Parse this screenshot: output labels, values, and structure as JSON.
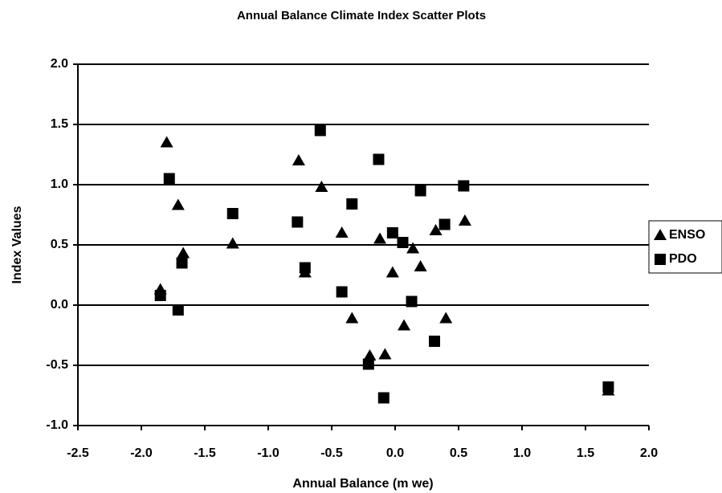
{
  "chart_data": {
    "type": "scatter",
    "title": "Annual Balance Climate Index Scatter Plots",
    "x_label": "Annual Balance (m we)",
    "y_label": "Index Values",
    "xlim": [
      -2.5,
      2.0
    ],
    "ylim": [
      -1.0,
      2.0
    ],
    "xticks": [
      {
        "value": -2.5,
        "label": "-2.5"
      },
      {
        "value": -2.0,
        "label": "-2.0"
      },
      {
        "value": -1.5,
        "label": "-1.5"
      },
      {
        "value": -1.0,
        "label": "-1.0"
      },
      {
        "value": -0.5,
        "label": "-0.5"
      },
      {
        "value": 0.0,
        "label": "0.0"
      },
      {
        "value": 0.5,
        "label": "0.5"
      },
      {
        "value": 1.0,
        "label": "1.0"
      },
      {
        "value": 1.5,
        "label": "1.5"
      },
      {
        "value": 2.0,
        "label": "2.0"
      }
    ],
    "yticks": [
      {
        "value": 2.0,
        "label": "2.0"
      },
      {
        "value": 1.5,
        "label": "1.5"
      },
      {
        "value": 1.0,
        "label": "1.0"
      },
      {
        "value": 0.5,
        "label": "0.5"
      },
      {
        "value": 0.0,
        "label": "0.0"
      },
      {
        "value": -0.5,
        "label": "-0.5"
      },
      {
        "value": -1.0,
        "label": "-1.0"
      }
    ],
    "grid": true,
    "legend": "right",
    "series": [
      {
        "name": "ENSO",
        "marker": "triangle",
        "color": "#000000",
        "x": [
          -1.8,
          -1.85,
          -1.71,
          -1.67,
          -1.28,
          -0.76,
          -0.71,
          -0.58,
          -0.42,
          -0.34,
          -0.2,
          -0.12,
          -0.08,
          -0.02,
          0.07,
          0.14,
          0.2,
          0.32,
          0.4,
          0.55,
          1.68
        ],
        "values": [
          1.35,
          0.13,
          0.83,
          0.43,
          0.51,
          1.2,
          0.27,
          0.98,
          0.6,
          -0.11,
          -0.42,
          0.55,
          -0.41,
          0.27,
          -0.17,
          0.47,
          0.32,
          0.62,
          -0.11,
          0.7,
          -0.71
        ]
      },
      {
        "name": "PDO",
        "marker": "square",
        "color": "#000000",
        "x": [
          -1.78,
          -1.85,
          -1.71,
          -1.68,
          -1.28,
          -0.77,
          -0.71,
          -0.59,
          -0.42,
          -0.34,
          -0.21,
          -0.13,
          -0.09,
          -0.02,
          0.06,
          0.13,
          0.2,
          0.31,
          0.39,
          0.54,
          1.68
        ],
        "values": [
          1.05,
          0.08,
          -0.04,
          0.35,
          0.76,
          0.69,
          0.31,
          1.45,
          0.11,
          0.84,
          -0.49,
          1.21,
          -0.77,
          0.6,
          0.52,
          0.03,
          0.95,
          -0.3,
          0.67,
          0.99,
          -0.68
        ]
      }
    ]
  }
}
